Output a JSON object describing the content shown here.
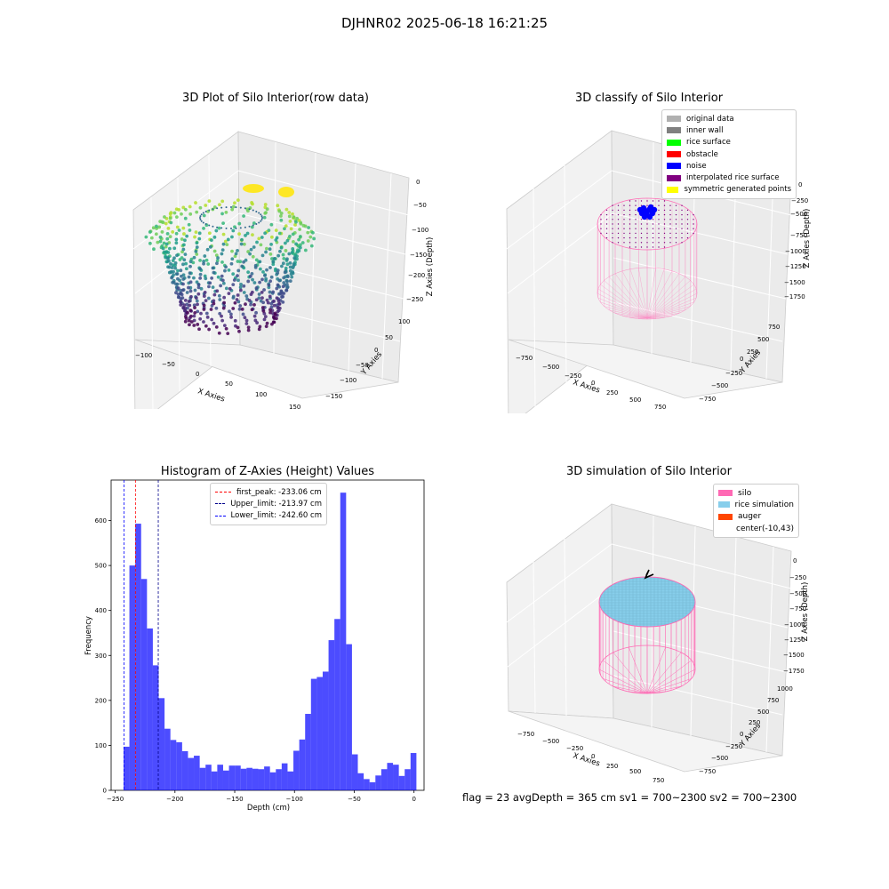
{
  "suptitle": "DJHNR02 2025-06-18 16:21:25",
  "status_line": "flag = 23   avgDepth = 365 cm  sv1 = 700~2300  sv2 = 700~2300",
  "colors": {
    "hist_bar": "#0000ff",
    "first_peak": "#ff0000",
    "limits": "#00008b",
    "silo": "#ff69b4",
    "rice": "#87ceeb",
    "auger": "#ff4500",
    "noise": "#0000ff",
    "pink_wire": "#ff69b4",
    "purple_pts": "#800080"
  },
  "panels": {
    "p1": {
      "title": "3D Plot of Silo Interior(row data)",
      "x_label": "X Axies",
      "y_label": "Y Axies",
      "z_label": "Z Axies (Depth)",
      "x_ticks": [
        "−100",
        "−50",
        "0",
        "50",
        "100",
        "150"
      ],
      "y_ticks": [
        "100",
        "50",
        "0",
        "−50",
        "−100",
        "−150"
      ],
      "z_ticks": [
        "0",
        "−50",
        "−100",
        "−150",
        "−200",
        "−250"
      ]
    },
    "p2": {
      "title": "3D classify of Silo Interior",
      "x_label": "X Axies",
      "y_label": "Y Axies",
      "z_label": "Z Axies (Depth)",
      "x_ticks": [
        "−750",
        "−500",
        "−250",
        "0",
        "250",
        "500",
        "750"
      ],
      "y_ticks": [
        "750",
        "500",
        "250",
        "0",
        "−250",
        "−500",
        "−750"
      ],
      "z_ticks": [
        "0",
        "−250",
        "−500",
        "−750",
        "−1000",
        "−1250",
        "−1500",
        "−1750"
      ],
      "legend": [
        {
          "label": "original data",
          "color": "#b0b0b0"
        },
        {
          "label": "inner wall",
          "color": "#808080"
        },
        {
          "label": "rice surface",
          "color": "#00ff00"
        },
        {
          "label": "obstacle",
          "color": "#ff0000"
        },
        {
          "label": "noise",
          "color": "#0000ff"
        },
        {
          "label": "interpolated rice surface",
          "color": "#800080"
        },
        {
          "label": "symmetric generated points",
          "color": "#ffff00"
        }
      ]
    },
    "p4": {
      "title": "3D simulation of Silo Interior",
      "x_label": "X Axies",
      "y_label": "Y Axies",
      "z_label": "Z Axies (Depth)",
      "x_ticks": [
        "−750",
        "−500",
        "−250",
        "0",
        "250",
        "500",
        "750"
      ],
      "y_ticks": [
        "1000",
        "750",
        "500",
        "250",
        "0",
        "−250",
        "−500",
        "−750"
      ],
      "z_ticks": [
        "0",
        "−250",
        "−500",
        "−750",
        "−1000",
        "−1250",
        "−1500",
        "−1750"
      ],
      "legend": [
        {
          "label": "silo",
          "color": "#ff69b4"
        },
        {
          "label": "rice simulation",
          "color": "#87ceeb"
        },
        {
          "label": "auger",
          "color": "#ff4500"
        },
        {
          "label": "center(-10,43)",
          "color": "#ffffff"
        }
      ]
    }
  },
  "chart_data": [
    {
      "type": "scatter3d",
      "title": "3D Plot of Silo Interior(row data)",
      "xlabel": "X Axies",
      "ylabel": "Y Axies",
      "zlabel": "Z Axies (Depth)",
      "xlim": [
        -100,
        150
      ],
      "ylim": [
        -150,
        100
      ],
      "zlim": [
        -250,
        0
      ]
    },
    {
      "type": "scatter3d",
      "title": "3D classify of Silo Interior",
      "xlabel": "X Axies",
      "ylabel": "Y Axies",
      "zlabel": "Z Axies (Depth)",
      "xlim": [
        -750,
        750
      ],
      "ylim": [
        -750,
        750
      ],
      "zlim": [
        -1750,
        0
      ]
    },
    {
      "type": "bar",
      "title": "Histogram of Z-Axies (Height) Values",
      "xlabel": "Depth (cm)",
      "ylabel": "Frequency",
      "xlim": [
        -250,
        0
      ],
      "ylim": [
        0,
        690
      ],
      "x_ticks": [
        -250,
        -200,
        -150,
        -100,
        -50,
        0
      ],
      "x_tick_labels": [
        "−250",
        "−200",
        "−150",
        "−100",
        "−50",
        "0"
      ],
      "y_ticks": [
        0,
        100,
        200,
        300,
        400,
        500,
        600
      ],
      "bin_start": -243.0,
      "bin_width": 4.9,
      "values": [
        97,
        500,
        593,
        470,
        360,
        278,
        205,
        137,
        112,
        107,
        87,
        72,
        77,
        50,
        57,
        42,
        57,
        44,
        55,
        55,
        48,
        50,
        48,
        47,
        53,
        40,
        47,
        60,
        42,
        88,
        113,
        170,
        248,
        252,
        264,
        334,
        381,
        662,
        325,
        80,
        38,
        25,
        18,
        33,
        47,
        61,
        57,
        32,
        47,
        83
      ],
      "lines": [
        {
          "name": "first_peak: -233.06 cm",
          "x": -233.06,
          "color": "#ff0000"
        },
        {
          "name": "Upper_limit: -213.97 cm",
          "x": -213.97,
          "color": "#00008b"
        },
        {
          "name": "Lower_limit: -242.60 cm",
          "x": -242.6,
          "color": "#0000ff"
        }
      ],
      "legend_position": "top-center"
    },
    {
      "type": "surface3d",
      "title": "3D simulation of Silo Interior",
      "xlabel": "X Axies",
      "ylabel": "Y Axies",
      "zlabel": "Z Axies (Depth)",
      "xlim": [
        -750,
        750
      ],
      "ylim": [
        -750,
        1000
      ],
      "zlim": [
        -1750,
        0
      ]
    }
  ]
}
